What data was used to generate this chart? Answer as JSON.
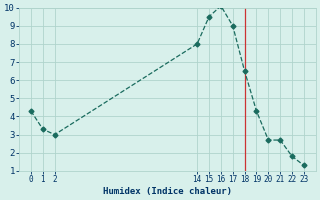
{
  "x": [
    0,
    1,
    2,
    14,
    15,
    16,
    17,
    18,
    19,
    20,
    21,
    22,
    23
  ],
  "y": [
    4.3,
    3.3,
    3.0,
    8.0,
    9.5,
    10.1,
    9.0,
    6.5,
    4.3,
    2.7,
    2.7,
    1.8,
    1.3
  ],
  "line_color": "#1a6b5e",
  "marker": "D",
  "marker_size": 2.5,
  "bg_color": "#d8f0eb",
  "grid_color": "#b0d4cc",
  "xlabel": "Humidex (Indice chaleur)",
  "xlabel_color": "#003366",
  "ylim": [
    1,
    10
  ],
  "yticks": [
    1,
    2,
    3,
    4,
    5,
    6,
    7,
    8,
    9,
    10
  ],
  "xtick_labels": [
    "0",
    "1",
    "2",
    "14",
    "15",
    "16",
    "17",
    "18",
    "19",
    "20",
    "21",
    "22",
    "23"
  ],
  "vline_x": 18,
  "vline_color": "#cc3333",
  "tick_color": "#003366",
  "font_family": "monospace"
}
